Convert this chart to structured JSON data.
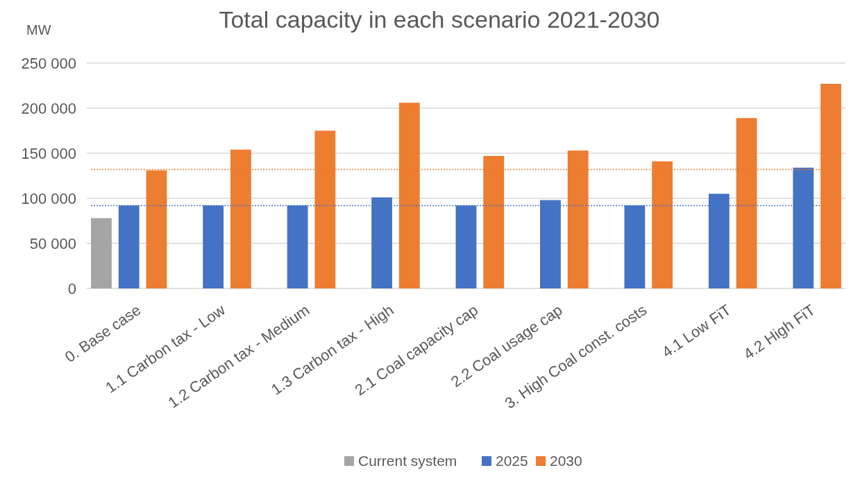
{
  "chart_data": {
    "type": "bar",
    "title": "Total capacity in each scenario 2021-2030",
    "ylabel": "MW",
    "categories": [
      "0. Base case",
      "1.1 Carbon tax - Low",
      "1.2 Carbon tax - Medium",
      "1.3 Carbon tax - High",
      "2.1 Coal capacity cap",
      "2.2 Coal usage cap",
      "3. High Coal const. costs",
      "4.1 Low FiT",
      "4.2 High FiT"
    ],
    "series": [
      {
        "name": "Current system",
        "color": "#a5a5a5",
        "values": [
          78000,
          null,
          null,
          null,
          null,
          null,
          null,
          null,
          null
        ]
      },
      {
        "name": "2025",
        "color": "#4472c4",
        "values": [
          92000,
          92000,
          92000,
          101000,
          92000,
          98000,
          92000,
          105000,
          134000
        ]
      },
      {
        "name": "2030",
        "color": "#ed7d31",
        "values": [
          131000,
          154000,
          175000,
          206000,
          147000,
          153000,
          141000,
          189000,
          227000
        ]
      }
    ],
    "ylim": [
      0,
      250000
    ],
    "yticks": [
      {
        "value": 0,
        "label": "0"
      },
      {
        "value": 50000,
        "label": "50 000"
      },
      {
        "value": 100000,
        "label": "100 000"
      },
      {
        "value": 150000,
        "label": "150 000"
      },
      {
        "value": 200000,
        "label": "200 000"
      },
      {
        "value": 250000,
        "label": "250 000"
      }
    ],
    "ref_lines": [
      {
        "axis": "y",
        "value": 92000,
        "color": "#4472c4",
        "line_style": "dotted"
      },
      {
        "axis": "y",
        "value": 132000,
        "color": "#ed7d31",
        "line_style": "dotted"
      }
    ],
    "grid": "y",
    "legend": "bottom"
  }
}
